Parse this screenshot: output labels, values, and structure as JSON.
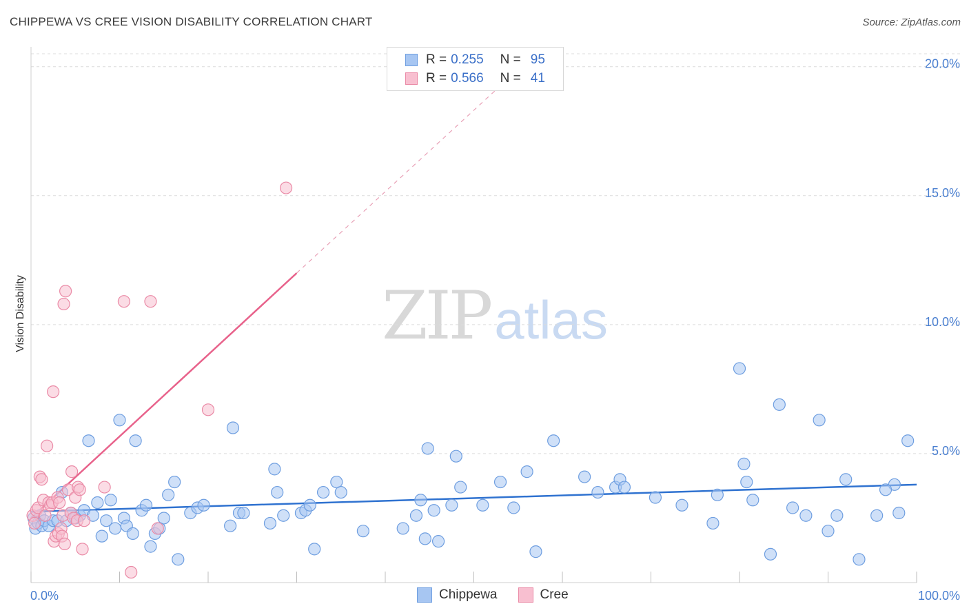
{
  "title": "CHIPPEWA VS CREE VISION DISABILITY CORRELATION CHART",
  "source": "Source: ZipAtlas.com",
  "watermark": {
    "zip": "ZIP",
    "atlas": "atlas"
  },
  "legend": {
    "rows": [
      {
        "r_label": "R =",
        "r_value": "0.255",
        "n_label": "N =",
        "n_value": "95",
        "color": "#a7c6f2",
        "border": "#6e9ee0"
      },
      {
        "r_label": "R =",
        "r_value": "0.566",
        "n_label": "N =",
        "n_value": "41",
        "color": "#f8bfd0",
        "border": "#ea8aa6"
      }
    ]
  },
  "bottom_legend": [
    {
      "name": "Chippewa",
      "color": "#a7c6f2",
      "border": "#6e9ee0"
    },
    {
      "name": "Cree",
      "color": "#f8bfd0",
      "border": "#ea8aa6"
    }
  ],
  "chart_data": {
    "type": "scatter",
    "title": "CHIPPEWA VS CREE VISION DISABILITY CORRELATION CHART",
    "xlabel": "",
    "ylabel": "Vision Disability",
    "xlim": [
      0,
      100
    ],
    "ylim": [
      0,
      20.5
    ],
    "y_ticks": [
      {
        "value": 5,
        "label": "5.0%"
      },
      {
        "value": 10,
        "label": "10.0%"
      },
      {
        "value": 15,
        "label": "15.0%"
      },
      {
        "value": 20,
        "label": "20.0%"
      }
    ],
    "x_tick_labels": [
      {
        "value": 0,
        "label": "0.0%"
      },
      {
        "value": 100,
        "label": "100.0%"
      }
    ],
    "x_minor_ticks": [
      10,
      20,
      30,
      40,
      50,
      60,
      70,
      80,
      90
    ],
    "grid": true,
    "series": [
      {
        "name": "Chippewa",
        "color": "#6e9ee0",
        "fill": "#a7c6f2",
        "points": [
          [
            0.3,
            2.5
          ],
          [
            0.5,
            2.1
          ],
          [
            0.8,
            2.3
          ],
          [
            1.0,
            2.6
          ],
          [
            1.2,
            2.2
          ],
          [
            1.5,
            2.4
          ],
          [
            2.0,
            2.2
          ],
          [
            2.5,
            2.4
          ],
          [
            3.0,
            2.4
          ],
          [
            3.5,
            3.5
          ],
          [
            4.0,
            2.4
          ],
          [
            4.5,
            2.7
          ],
          [
            5.0,
            2.5
          ],
          [
            5.5,
            2.6
          ],
          [
            6.0,
            2.8
          ],
          [
            6.5,
            5.5
          ],
          [
            7.0,
            2.6
          ],
          [
            7.5,
            3.1
          ],
          [
            8.0,
            1.8
          ],
          [
            8.5,
            2.4
          ],
          [
            9.0,
            3.2
          ],
          [
            9.5,
            2.1
          ],
          [
            10.0,
            6.3
          ],
          [
            10.5,
            2.5
          ],
          [
            10.8,
            2.2
          ],
          [
            11.5,
            1.9
          ],
          [
            11.8,
            5.5
          ],
          [
            12.5,
            2.8
          ],
          [
            13.0,
            3.0
          ],
          [
            13.5,
            1.4
          ],
          [
            14.0,
            1.9
          ],
          [
            14.5,
            2.1
          ],
          [
            15.0,
            2.5
          ],
          [
            15.5,
            3.4
          ],
          [
            16.2,
            3.9
          ],
          [
            16.6,
            0.9
          ],
          [
            18.0,
            2.7
          ],
          [
            18.8,
            2.9
          ],
          [
            19.5,
            3.0
          ],
          [
            22.5,
            2.2
          ],
          [
            22.8,
            6.0
          ],
          [
            23.5,
            2.7
          ],
          [
            24.0,
            2.7
          ],
          [
            27.0,
            2.3
          ],
          [
            27.5,
            4.4
          ],
          [
            27.8,
            3.5
          ],
          [
            28.5,
            2.6
          ],
          [
            30.5,
            2.7
          ],
          [
            31.0,
            2.8
          ],
          [
            31.5,
            3.0
          ],
          [
            32.0,
            1.3
          ],
          [
            33.0,
            3.5
          ],
          [
            34.5,
            3.9
          ],
          [
            35.0,
            3.5
          ],
          [
            37.5,
            2.0
          ],
          [
            42.0,
            2.1
          ],
          [
            43.5,
            2.6
          ],
          [
            44.0,
            3.2
          ],
          [
            44.5,
            1.7
          ],
          [
            44.8,
            5.2
          ],
          [
            45.5,
            2.8
          ],
          [
            46.0,
            1.6
          ],
          [
            47.5,
            3.0
          ],
          [
            48.0,
            4.9
          ],
          [
            48.5,
            3.7
          ],
          [
            51.0,
            3.0
          ],
          [
            53.0,
            3.9
          ],
          [
            54.5,
            2.9
          ],
          [
            56.0,
            4.3
          ],
          [
            57.0,
            1.2
          ],
          [
            59.0,
            5.5
          ],
          [
            62.5,
            4.1
          ],
          [
            64.0,
            3.5
          ],
          [
            66.0,
            3.7
          ],
          [
            66.5,
            4.0
          ],
          [
            67.0,
            3.7
          ],
          [
            70.5,
            3.3
          ],
          [
            73.5,
            3.0
          ],
          [
            77.0,
            2.3
          ],
          [
            77.5,
            3.4
          ],
          [
            80.0,
            8.3
          ],
          [
            80.5,
            4.6
          ],
          [
            80.8,
            3.9
          ],
          [
            81.5,
            3.2
          ],
          [
            83.5,
            1.1
          ],
          [
            84.5,
            6.9
          ],
          [
            86.0,
            2.9
          ],
          [
            87.5,
            2.6
          ],
          [
            89.0,
            6.3
          ],
          [
            90.0,
            2.0
          ],
          [
            91.0,
            2.6
          ],
          [
            92.0,
            4.0
          ],
          [
            93.5,
            0.9
          ],
          [
            95.5,
            2.6
          ],
          [
            98.0,
            2.7
          ],
          [
            97.5,
            3.8
          ],
          [
            96.5,
            3.6
          ],
          [
            99.0,
            5.5
          ]
        ],
        "trend": {
          "x": [
            0,
            100
          ],
          "y": [
            2.75,
            3.8
          ]
        }
      },
      {
        "name": "Cree",
        "color": "#ea8aa6",
        "fill": "#f8bfd0",
        "points": [
          [
            0.2,
            2.6
          ],
          [
            0.4,
            2.3
          ],
          [
            0.6,
            2.8
          ],
          [
            0.8,
            2.9
          ],
          [
            1.0,
            4.1
          ],
          [
            1.2,
            4.0
          ],
          [
            1.4,
            3.2
          ],
          [
            1.6,
            2.6
          ],
          [
            1.8,
            5.3
          ],
          [
            2.0,
            3.1
          ],
          [
            2.2,
            3.0
          ],
          [
            2.4,
            3.1
          ],
          [
            2.5,
            7.4
          ],
          [
            2.6,
            1.6
          ],
          [
            2.8,
            1.8
          ],
          [
            3.0,
            3.3
          ],
          [
            3.1,
            1.9
          ],
          [
            3.2,
            3.1
          ],
          [
            3.4,
            2.1
          ],
          [
            3.5,
            1.8
          ],
          [
            3.6,
            2.6
          ],
          [
            3.8,
            1.5
          ],
          [
            3.7,
            10.8
          ],
          [
            3.9,
            11.3
          ],
          [
            4.2,
            3.6
          ],
          [
            4.5,
            2.7
          ],
          [
            4.6,
            4.3
          ],
          [
            4.8,
            2.5
          ],
          [
            5.0,
            3.3
          ],
          [
            5.2,
            2.4
          ],
          [
            5.3,
            3.7
          ],
          [
            5.5,
            3.6
          ],
          [
            5.8,
            1.3
          ],
          [
            6.0,
            2.4
          ],
          [
            8.3,
            3.7
          ],
          [
            10.5,
            10.9
          ],
          [
            11.3,
            0.4
          ],
          [
            13.5,
            10.9
          ],
          [
            14.3,
            2.1
          ],
          [
            20.0,
            6.7
          ],
          [
            28.8,
            15.3
          ]
        ],
        "trend": {
          "x": [
            0,
            30
          ],
          "y": [
            2.5,
            12.0
          ]
        },
        "trend_extension": {
          "x": [
            30,
            52.5
          ],
          "y": [
            12.0,
            19.1
          ]
        }
      }
    ]
  }
}
